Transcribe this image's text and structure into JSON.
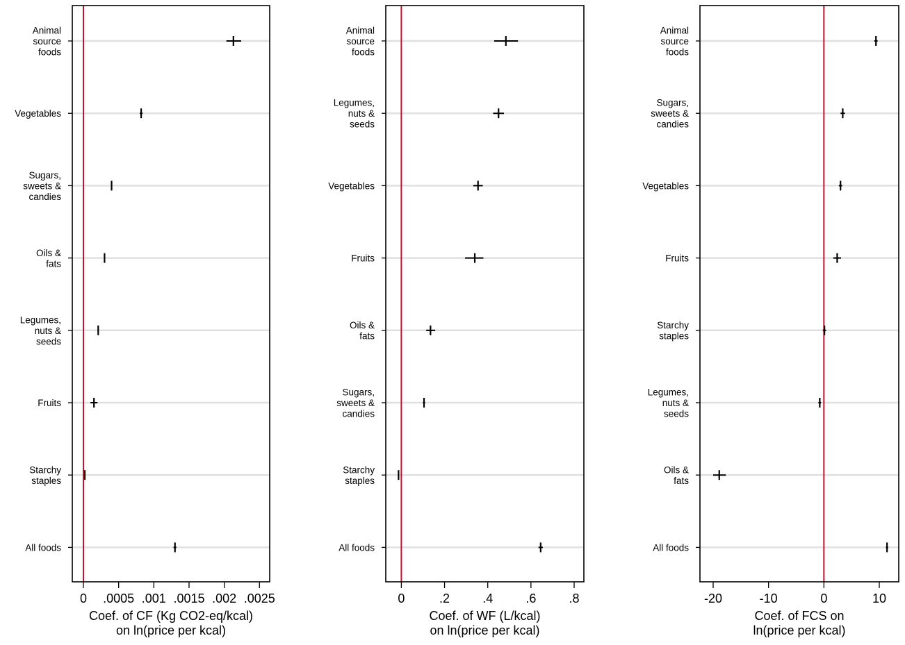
{
  "chart_data": [
    {
      "type": "scatter",
      "subtype": "coefficient-plot-with-ci",
      "xlabel": [
        "Coef. of CF (Kg CO2-eq/kcal)",
        "on ln(price per kcal)"
      ],
      "xlim": [
        -0.0001,
        0.0027
      ],
      "ticks": [
        0,
        0.0005,
        0.001,
        0.0015,
        0.002,
        0.0025
      ],
      "tick_labels": [
        "0",
        ".0005",
        ".001",
        ".0015",
        ".002",
        ".0025"
      ],
      "reference_line": 0,
      "reference_color": "#c8102e",
      "categories": [
        {
          "label": [
            "Animal",
            "source",
            "foods"
          ],
          "value": 0.00213,
          "ci": [
            0.00203,
            0.00224
          ]
        },
        {
          "label": [
            "Vegetables"
          ],
          "value": 0.00082,
          "ci": [
            0.0008,
            0.00084
          ]
        },
        {
          "label": [
            "Sugars,",
            "sweets &",
            "candies"
          ],
          "value": 0.0004,
          "ci": [
            0.00039,
            0.00041
          ]
        },
        {
          "label": [
            "Oils &",
            "fats"
          ],
          "value": 0.0003,
          "ci": [
            0.00029,
            0.00031
          ]
        },
        {
          "label": [
            "Legumes,",
            "nuts &",
            "seeds"
          ],
          "value": 0.00021,
          "ci": [
            0.0002,
            0.00022
          ]
        },
        {
          "label": [
            "Fruits"
          ],
          "value": 0.00015,
          "ci": [
            0.0001,
            0.0002
          ]
        },
        {
          "label": [
            "Starchy",
            "staples"
          ],
          "value": 2e-05,
          "ci": [
            1e-05,
            3e-05
          ]
        },
        {
          "label": [
            "All foods"
          ],
          "value": 0.0013,
          "ci": [
            0.00128,
            0.00132
          ]
        }
      ]
    },
    {
      "type": "scatter",
      "subtype": "coefficient-plot-with-ci",
      "xlabel": [
        "Coef. of WF (L/kcal)",
        "on ln(price per kcal)"
      ],
      "xlim": [
        -0.07,
        0.85
      ],
      "ticks": [
        0,
        0.2,
        0.4,
        0.6,
        0.8
      ],
      "tick_labels": [
        "0",
        ".2",
        ".4",
        ".6",
        ".8"
      ],
      "reference_line": 0,
      "reference_color": "#c8102e",
      "categories": [
        {
          "label": [
            "Animal",
            "source",
            "foods"
          ],
          "value": 0.484,
          "ci": [
            0.43,
            0.54
          ]
        },
        {
          "label": [
            "Legumes,",
            "nuts &",
            "seeds"
          ],
          "value": 0.45,
          "ci": [
            0.425,
            0.475
          ]
        },
        {
          "label": [
            "Vegetables"
          ],
          "value": 0.355,
          "ci": [
            0.333,
            0.377
          ]
        },
        {
          "label": [
            "Fruits"
          ],
          "value": 0.34,
          "ci": [
            0.295,
            0.38
          ]
        },
        {
          "label": [
            "Oils &",
            "fats"
          ],
          "value": 0.135,
          "ci": [
            0.115,
            0.157
          ]
        },
        {
          "label": [
            "Sugars,",
            "sweets &",
            "candies"
          ],
          "value": 0.105,
          "ci": [
            0.1,
            0.11
          ]
        },
        {
          "label": [
            "Starchy",
            "staples"
          ],
          "value": -0.013,
          "ci": [
            -0.016,
            -0.01
          ]
        },
        {
          "label": [
            "All foods"
          ],
          "value": 0.645,
          "ci": [
            0.635,
            0.655
          ]
        }
      ]
    },
    {
      "type": "scatter",
      "subtype": "coefficient-plot-with-ci",
      "xlabel": [
        "Coef. of FCS on",
        "ln(price per kcal)"
      ],
      "xlim": [
        -22.5,
        13.5
      ],
      "ticks": [
        -20,
        -10,
        0,
        10
      ],
      "tick_labels": [
        "-20",
        "-10",
        "0",
        "10"
      ],
      "reference_line": 0,
      "reference_color": "#c8102e",
      "categories": [
        {
          "label": [
            "Animal",
            "source",
            "foods"
          ],
          "value": 9.4,
          "ci": [
            9.1,
            9.7
          ]
        },
        {
          "label": [
            "Sugars,",
            "sweets &",
            "candies"
          ],
          "value": 3.4,
          "ci": [
            3.0,
            3.8
          ]
        },
        {
          "label": [
            "Vegetables"
          ],
          "value": 3.0,
          "ci": [
            2.7,
            3.3
          ]
        },
        {
          "label": [
            "Fruits"
          ],
          "value": 2.4,
          "ci": [
            1.7,
            3.1
          ]
        },
        {
          "label": [
            "Starchy",
            "staples"
          ],
          "value": 0.1,
          "ci": [
            -0.2,
            0.4
          ]
        },
        {
          "label": [
            "Legumes,",
            "nuts &",
            "seeds"
          ],
          "value": -0.75,
          "ci": [
            -1.0,
            -0.5
          ]
        },
        {
          "label": [
            "Oils &",
            "fats"
          ],
          "value": -18.9,
          "ci": [
            -20.0,
            -17.7
          ]
        },
        {
          "label": [
            "All foods"
          ],
          "value": 11.4,
          "ci": [
            11.2,
            11.6
          ]
        }
      ]
    }
  ]
}
